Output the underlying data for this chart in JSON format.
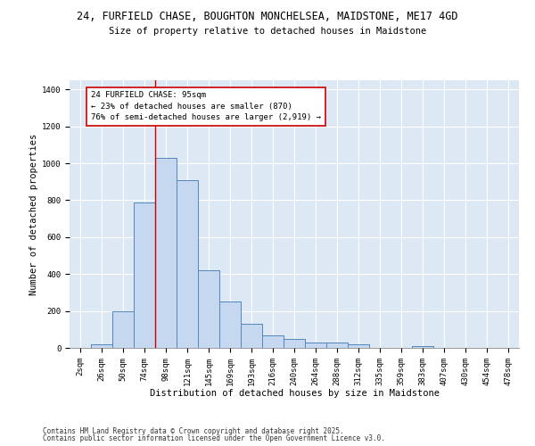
{
  "title1": "24, FURFIELD CHASE, BOUGHTON MONCHELSEA, MAIDSTONE, ME17 4GD",
  "title2": "Size of property relative to detached houses in Maidstone",
  "xlabel": "Distribution of detached houses by size in Maidstone",
  "ylabel": "Number of detached properties",
  "bar_labels": [
    "2sqm",
    "26sqm",
    "50sqm",
    "74sqm",
    "98sqm",
    "121sqm",
    "145sqm",
    "169sqm",
    "193sqm",
    "216sqm",
    "240sqm",
    "264sqm",
    "288sqm",
    "312sqm",
    "335sqm",
    "359sqm",
    "383sqm",
    "407sqm",
    "430sqm",
    "454sqm",
    "478sqm"
  ],
  "bar_values": [
    0,
    20,
    200,
    790,
    1030,
    910,
    420,
    250,
    130,
    70,
    50,
    30,
    30,
    20,
    0,
    0,
    10,
    0,
    0,
    0,
    0
  ],
  "bar_color": "#c5d8f0",
  "bar_edge_color": "#5588bb",
  "background_color": "#dde8f5",
  "grid_color": "#ffffff",
  "vline_x": 3.5,
  "vline_color": "#cc0000",
  "annotation_text": "24 FURFIELD CHASE: 95sqm\n← 23% of detached houses are smaller (870)\n76% of semi-detached houses are larger (2,919) →",
  "annotation_box_color": "#cc0000",
  "ylim": [
    0,
    1450
  ],
  "yticks": [
    0,
    200,
    400,
    600,
    800,
    1000,
    1200,
    1400
  ],
  "footer1": "Contains HM Land Registry data © Crown copyright and database right 2025.",
  "footer2": "Contains public sector information licensed under the Open Government Licence v3.0.",
  "title_fontsize": 8.5,
  "subtitle_fontsize": 7.5,
  "tick_fontsize": 6.5,
  "ylabel_fontsize": 7.5,
  "xlabel_fontsize": 7.5,
  "annotation_fontsize": 6.5,
  "footer_fontsize": 5.5
}
